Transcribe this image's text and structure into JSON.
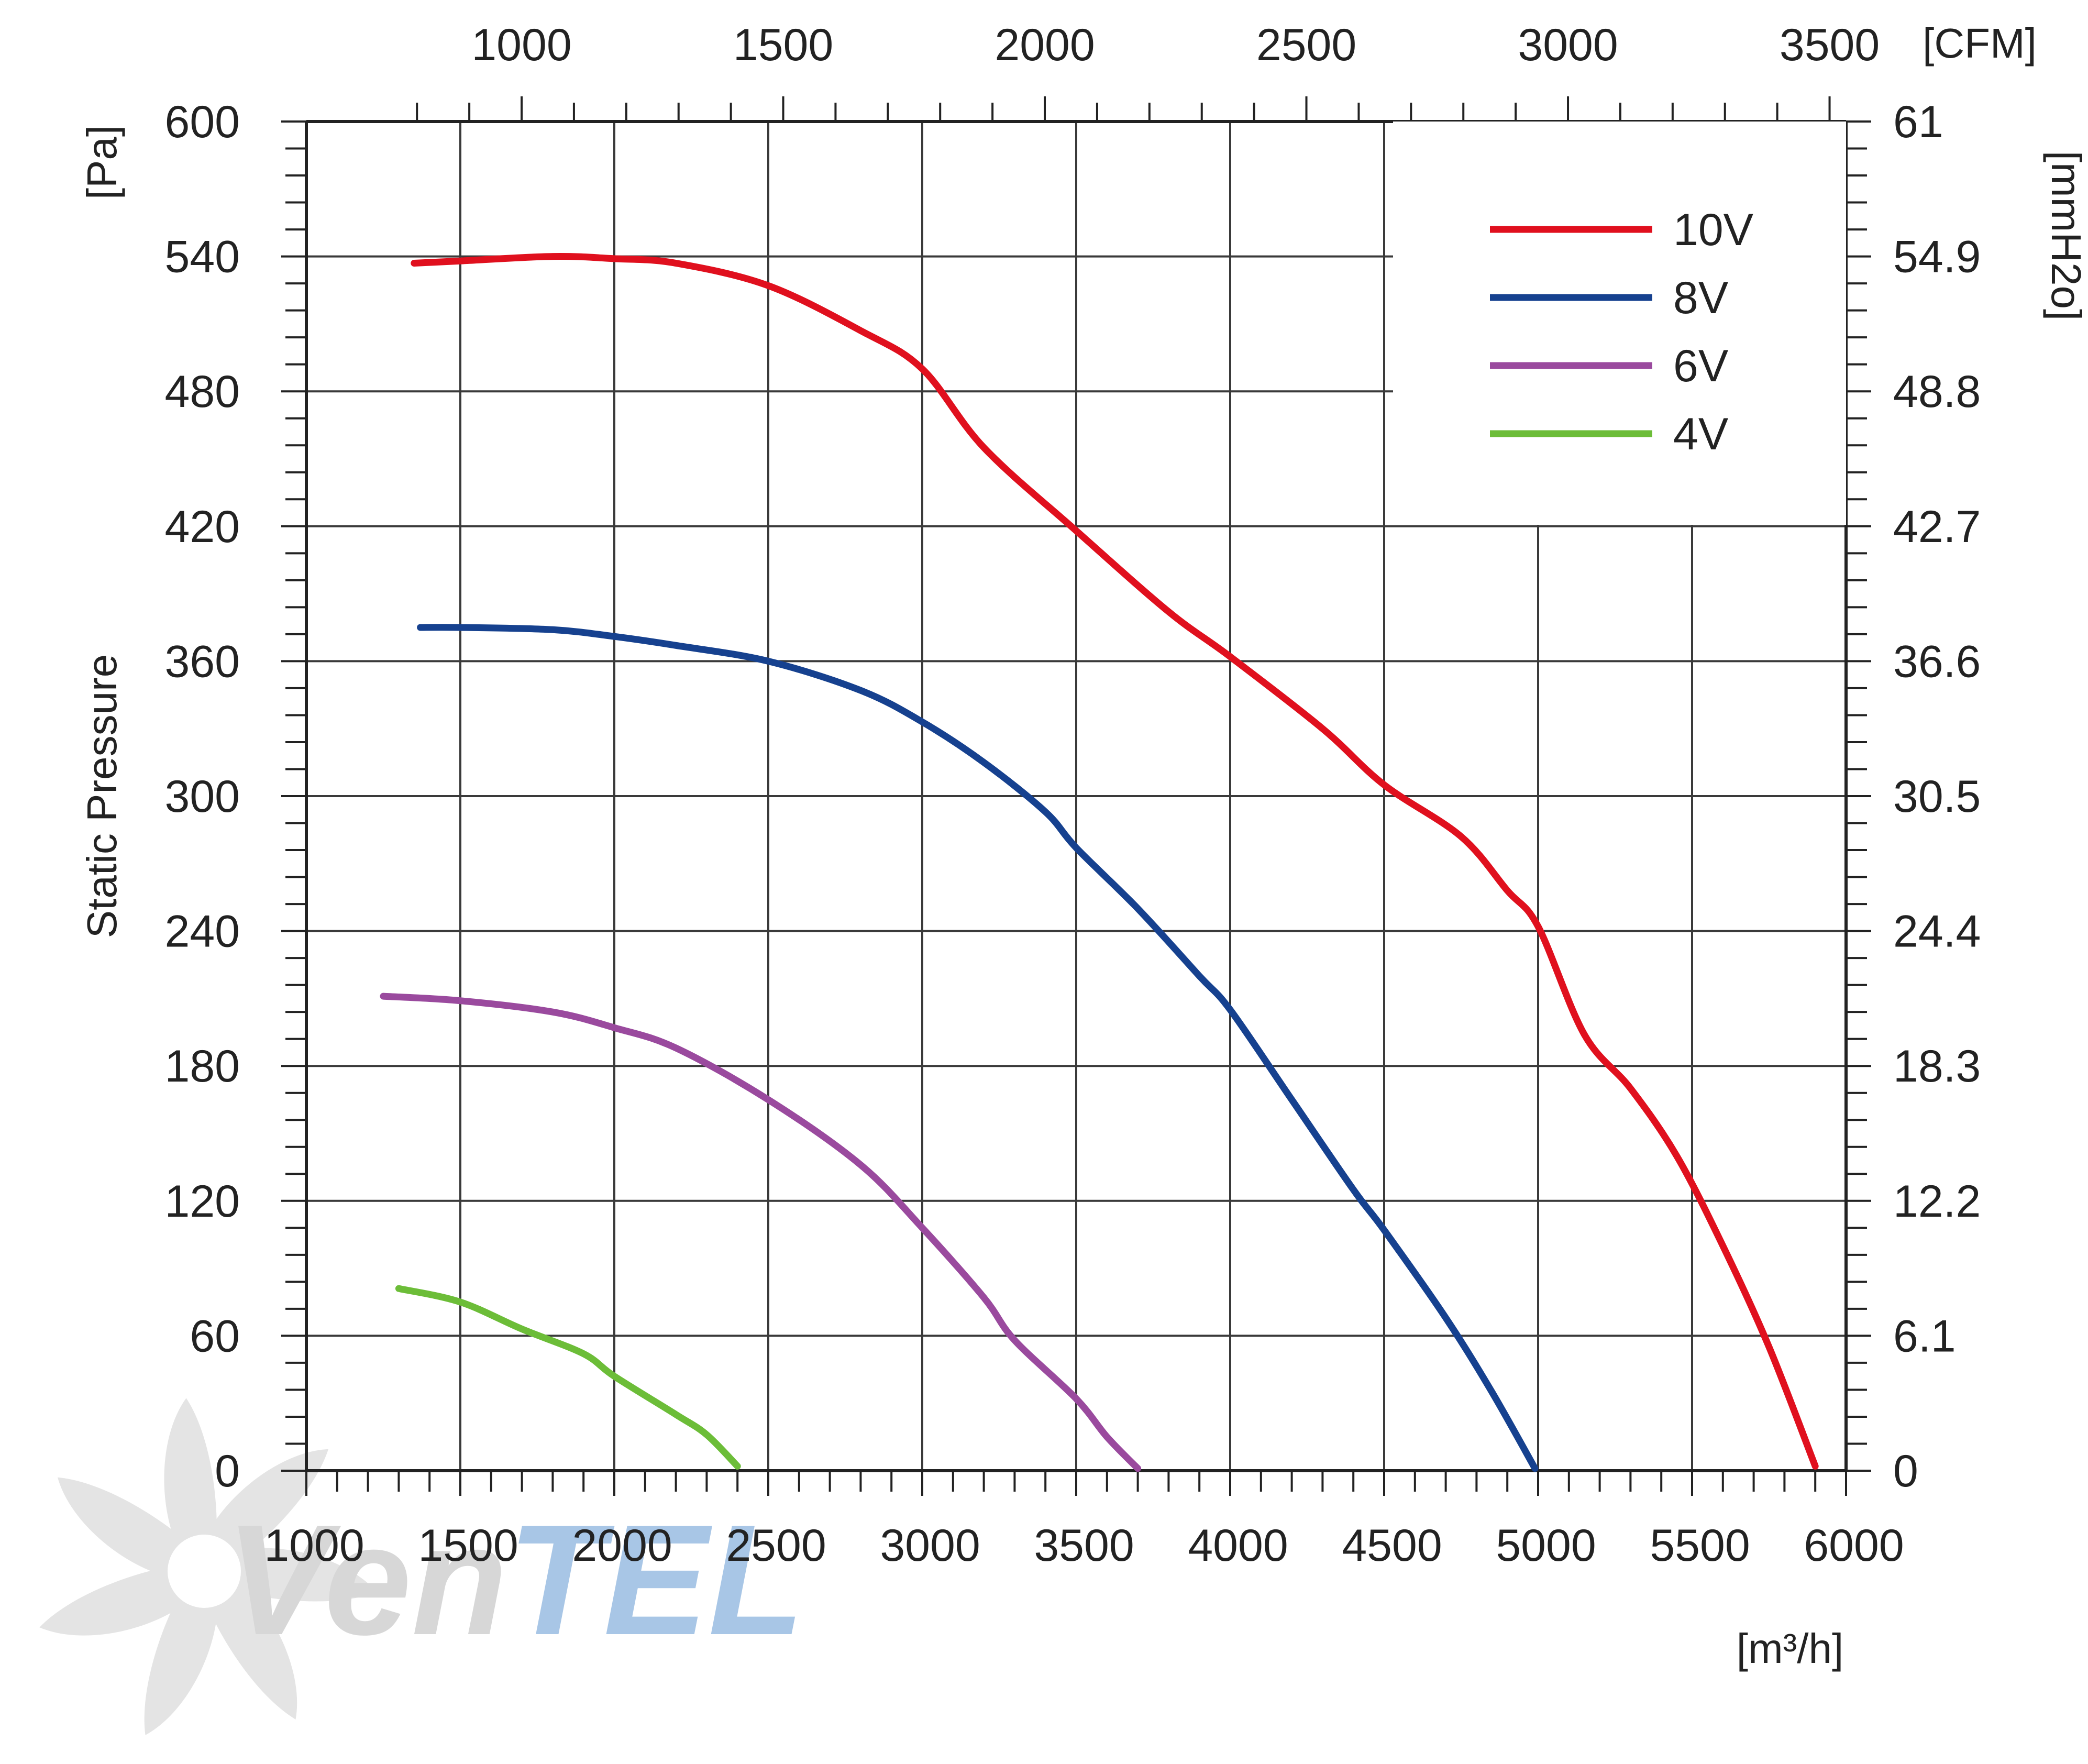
{
  "chart_data": {
    "type": "line",
    "title": "",
    "ylabel": "Static Pressure",
    "y_unit_left": "[Pa]",
    "y_unit_right": "[mmH2o]",
    "x_unit_bottom": "[m³/h]",
    "x_unit_top": "[CFM]",
    "xlim": [
      1000,
      6000
    ],
    "ylim": [
      0,
      600
    ],
    "x_ticks_bottom": [
      1000,
      1500,
      2000,
      2500,
      3000,
      3500,
      4000,
      4500,
      5000,
      5500,
      6000
    ],
    "x_tick_labels_bottom": [
      "1000",
      "1500",
      "2000",
      "2500",
      "3000",
      "3500",
      "4000",
      "4500",
      "5000",
      "5500",
      "6000"
    ],
    "x_ticks_top_cfm": [
      1000,
      1500,
      2000,
      2500,
      3000,
      3500
    ],
    "x_tick_labels_top": [
      "1000",
      "1500",
      "2000",
      "2500",
      "3000",
      "3500"
    ],
    "cfm_to_m3h": 1.699,
    "y_ticks_left": [
      0,
      60,
      120,
      180,
      240,
      300,
      360,
      420,
      480,
      540,
      600
    ],
    "y_tick_labels_left": [
      "0",
      "60",
      "120",
      "180",
      "240",
      "300",
      "360",
      "420",
      "480",
      "540",
      "600"
    ],
    "y_tick_labels_right": [
      "0",
      "6.1",
      "12.2",
      "18.3",
      "24.4",
      "30.5",
      "36.6",
      "42.7",
      "48.8",
      "54.9",
      "61"
    ],
    "legend_position": "top-right",
    "series": [
      {
        "name": "10V",
        "color": "#e0101e",
        "x": [
          1350,
          1500,
          1800,
          2000,
          2200,
          2500,
          2800,
          3000,
          3200,
          3500,
          3800,
          4000,
          4300,
          4500,
          4750,
          4900,
          5000,
          5150,
          5300,
          5450,
          5600,
          5750,
          5900
        ],
        "y": [
          537,
          538,
          540,
          539,
          537,
          527,
          507,
          490,
          455,
          418,
          382,
          362,
          330,
          305,
          282,
          258,
          242,
          194,
          170,
          140,
          100,
          55,
          2
        ]
      },
      {
        "name": "8V",
        "color": "#16418f",
        "x": [
          1370,
          1500,
          1800,
          2000,
          2200,
          2500,
          2800,
          3000,
          3200,
          3400,
          3500,
          3700,
          3900,
          4000,
          4200,
          4400,
          4500,
          4700,
          4850,
          4990
        ],
        "y": [
          375,
          375,
          374,
          371,
          367,
          360,
          347,
          333,
          315,
          293,
          277,
          250,
          220,
          205,
          165,
          125,
          107,
          68,
          35,
          1
        ]
      },
      {
        "name": "6V",
        "color": "#9a4a9e",
        "x": [
          1250,
          1500,
          1800,
          2000,
          2200,
          2500,
          2800,
          3000,
          3200,
          3300,
          3500,
          3600,
          3700
        ],
        "y": [
          211,
          209,
          204,
          197,
          188,
          165,
          136,
          108,
          77,
          58,
          32,
          15,
          1
        ]
      },
      {
        "name": "4V",
        "color": "#6cbd38",
        "x": [
          1300,
          1500,
          1700,
          1900,
          2000,
          2200,
          2300,
          2400
        ],
        "y": [
          81,
          75,
          63,
          52,
          42,
          25,
          16,
          2
        ]
      }
    ]
  },
  "watermark": {
    "brand_text": "VenTEL",
    "brand_main_color": "#d7d7d7",
    "brand_accent_color": "#a8c6e6"
  }
}
